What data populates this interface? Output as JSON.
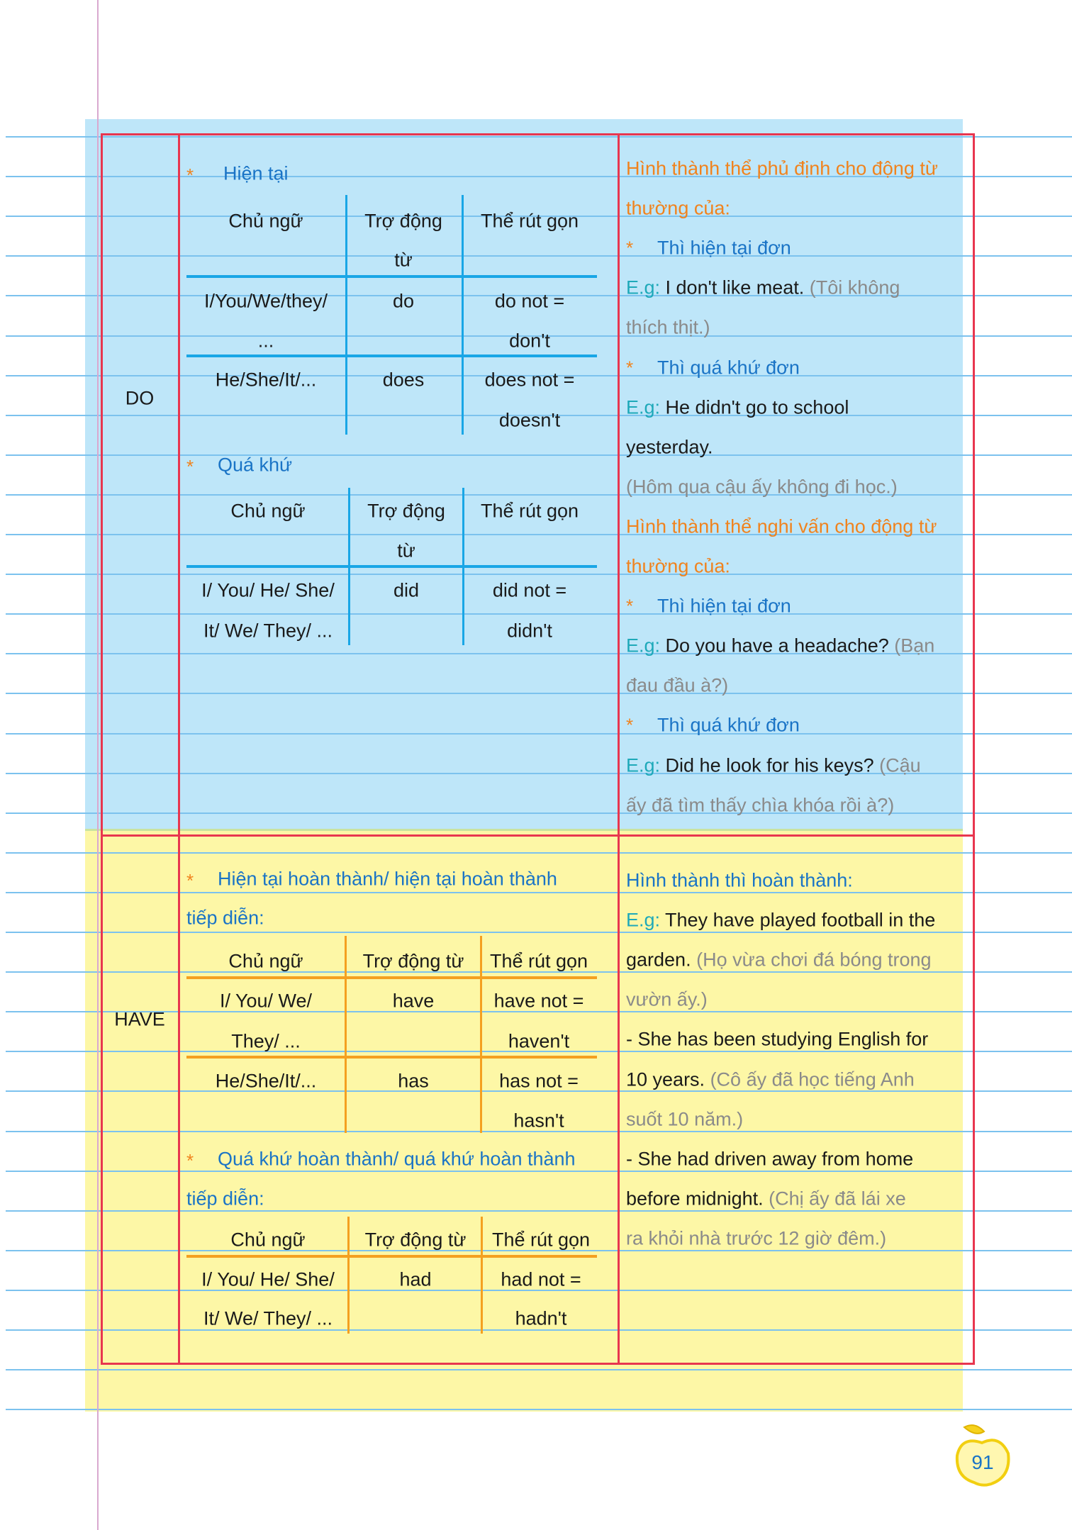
{
  "colors": {
    "frame": "#e8364f",
    "do_bg": "#bee6f9",
    "have_bg": "#fdf7a6",
    "heading": "#1a74c6",
    "accent": "#f0831e",
    "eg": "#1ea9b9",
    "translation": "#8a8a8a"
  },
  "star": "*",
  "do": {
    "label": "DO",
    "present": {
      "title": "Hiện tại",
      "headers": [
        "Chủ ngữ",
        "Trợ động",
        "từ",
        "Thể rút gọn"
      ],
      "rows": [
        {
          "subject": [
            "I/You/We/they/",
            "..."
          ],
          "aux": "do",
          "short": [
            "do not =",
            "don't"
          ]
        },
        {
          "subject": [
            "He/She/It/..."
          ],
          "aux": "does",
          "short": [
            "does not =",
            "doesn't"
          ]
        }
      ]
    },
    "past": {
      "title": "Quá khứ",
      "headers": [
        "Chủ ngữ",
        "Trợ động",
        "từ",
        "Thể rút gọn"
      ],
      "rows": [
        {
          "subject": [
            "I/ You/ He/ She/",
            "It/ We/ They/ ..."
          ],
          "aux": "did",
          "short": [
            "did not =",
            "didn't"
          ]
        }
      ]
    },
    "notes": [
      [
        {
          "s": "orange",
          "t": "Hình thành thể phủ định cho động từ"
        }
      ],
      [
        {
          "s": "orange",
          "t": "thường của:"
        }
      ],
      [
        {
          "s": "star",
          "t": "*"
        },
        {
          "s": "head",
          "t": "Thì hiện tại đơn"
        }
      ],
      [
        {
          "s": "teal",
          "t": "E.g:"
        },
        {
          "s": "black",
          "t": " I don't like meat."
        },
        {
          "s": "gray",
          "t": " (Tôi không"
        }
      ],
      [
        {
          "s": "gray",
          "t": "thích thịt.)"
        }
      ],
      [
        {
          "s": "star",
          "t": "*"
        },
        {
          "s": "head",
          "t": "Thì quá khứ đơn"
        }
      ],
      [
        {
          "s": "teal",
          "t": "E.g:"
        },
        {
          "s": "black",
          "t": " He didn't go to school"
        }
      ],
      [
        {
          "s": "black",
          "t": "yesterday."
        }
      ],
      [
        {
          "s": "gray",
          "t": "(Hôm qua cậu ấy không đi học.)"
        }
      ],
      [
        {
          "s": "orange",
          "t": "Hình thành thể nghi vấn cho động từ"
        }
      ],
      [
        {
          "s": "orange",
          "t": "thường của:"
        }
      ],
      [
        {
          "s": "star",
          "t": "*"
        },
        {
          "s": "head",
          "t": "Thì hiện tại đơn"
        }
      ],
      [
        {
          "s": "teal",
          "t": "E.g:"
        },
        {
          "s": "black",
          "t": " Do you have a headache?"
        },
        {
          "s": "gray",
          "t": " (Bạn"
        }
      ],
      [
        {
          "s": "gray",
          "t": "đau đầu à?)"
        }
      ],
      [
        {
          "s": "star",
          "t": "*"
        },
        {
          "s": "head",
          "t": "Thì quá khứ đơn"
        }
      ],
      [
        {
          "s": "teal",
          "t": "E.g:"
        },
        {
          "s": "black",
          "t": " Did he look for his keys?"
        },
        {
          "s": "gray",
          "t": " (Cậu"
        }
      ],
      [
        {
          "s": "gray",
          "t": "ấy đã tìm thấy chìa khóa rồi à?)"
        }
      ]
    ]
  },
  "have": {
    "label": "HAVE",
    "perfect": {
      "title": [
        "Hiện tại hoàn thành/ hiện tại hoàn thành",
        "tiếp diễn:"
      ],
      "headers": [
        "Chủ ngữ",
        "Trợ động từ",
        "Thể rút gọn"
      ],
      "rows": [
        {
          "subject": [
            "I/ You/ We/",
            "They/ ..."
          ],
          "aux": "have",
          "short": [
            "have not =",
            "haven't"
          ]
        },
        {
          "subject": [
            "He/She/It/..."
          ],
          "aux": "has",
          "short": [
            "has not =",
            "hasn't"
          ]
        }
      ]
    },
    "past_perfect": {
      "title": [
        "Quá khứ hoàn thành/ quá khứ hoàn thành",
        "tiếp diễn:"
      ],
      "headers": [
        "Chủ ngữ",
        "Trợ động từ",
        "Thể rút gọn"
      ],
      "rows": [
        {
          "subject": [
            "I/ You/ He/ She/",
            "It/ We/ They/ ..."
          ],
          "aux": "had",
          "short": [
            "had not =",
            "hadn't"
          ]
        }
      ]
    },
    "notes": [
      [
        {
          "s": "head",
          "t": "Hình thành thì hoàn thành:"
        }
      ],
      [
        {
          "s": "teal",
          "t": "E.g:"
        },
        {
          "s": "black",
          "t": " They have played football in the"
        }
      ],
      [
        {
          "s": "black",
          "t": "garden."
        },
        {
          "s": "gray",
          "t": " (Họ vừa chơi đá bóng trong"
        }
      ],
      [
        {
          "s": "gray",
          "t": "vườn ấy.)"
        }
      ],
      [
        {
          "s": "black",
          "t": "- She has been studying English for"
        }
      ],
      [
        {
          "s": "black",
          "t": "10 years."
        },
        {
          "s": "gray",
          "t": " (Cô ấy đã học tiếng Anh"
        }
      ],
      [
        {
          "s": "gray",
          "t": "suốt 10 năm.)"
        }
      ],
      [
        {
          "s": "black",
          "t": "- She had driven away from home"
        }
      ],
      [
        {
          "s": "black",
          "t": "before midnight."
        },
        {
          "s": "gray",
          "t": " (Chị ấy đã lái xe"
        }
      ],
      [
        {
          "s": "gray",
          "t": "ra khỏi nhà trước 12 giờ đêm.)"
        }
      ]
    ]
  },
  "page_number": "91"
}
